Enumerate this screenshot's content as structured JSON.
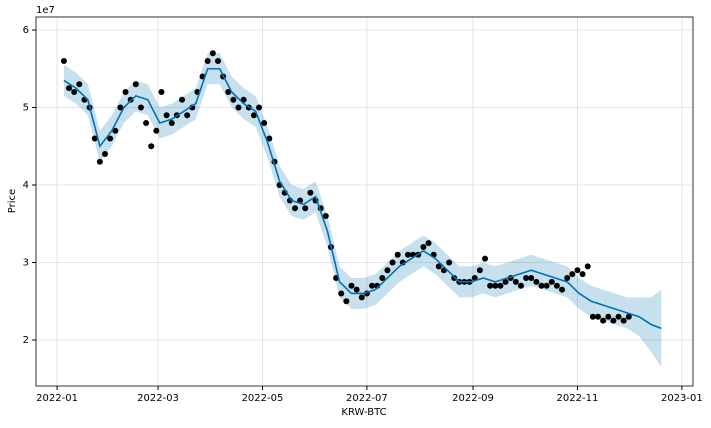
{
  "chart_data": {
    "type": "forecast",
    "y_label": "Price",
    "x_label": "KRW-BTC",
    "y_offset_label": "1e7",
    "grid": true,
    "xlim": [
      -12.3,
      371.5
    ],
    "xticks": [
      {
        "value": 0,
        "label": "2022-01"
      },
      {
        "value": 59,
        "label": "2022-03"
      },
      {
        "value": 120,
        "label": "2022-05"
      },
      {
        "value": 181,
        "label": "2022-07"
      },
      {
        "value": 243,
        "label": "2022-09"
      },
      {
        "value": 304,
        "label": "2022-11"
      },
      {
        "value": 365,
        "label": "2023-01"
      }
    ],
    "ylim": [
      1.406,
      6.168
    ],
    "yticks": [
      2,
      3,
      4,
      5,
      6
    ],
    "observed": {
      "color": "#000000",
      "x": [
        4,
        7,
        10,
        13,
        16,
        19,
        22,
        25,
        28,
        31,
        34,
        37,
        40,
        43,
        46,
        49,
        52,
        55,
        58,
        61,
        64,
        67,
        70,
        73,
        76,
        79,
        82,
        85,
        88,
        91,
        94,
        97,
        100,
        103,
        106,
        109,
        112,
        115,
        118,
        121,
        124,
        127,
        130,
        133,
        136,
        139,
        142,
        145,
        148,
        151,
        154,
        157,
        160,
        163,
        166,
        169,
        172,
        175,
        178,
        181,
        184,
        187,
        190,
        193,
        196,
        199,
        202,
        205,
        208,
        211,
        214,
        217,
        220,
        223,
        226,
        229,
        232,
        235,
        238,
        241,
        244,
        247,
        250,
        253,
        256,
        259,
        262,
        265,
        268,
        271,
        274,
        277,
        280,
        283,
        286,
        289,
        292,
        295,
        298,
        301,
        304,
        307,
        310,
        313,
        316,
        319,
        322,
        325,
        328,
        331,
        334
      ],
      "values": [
        5.6,
        5.25,
        5.2,
        5.3,
        5.1,
        5.0,
        4.6,
        4.3,
        4.4,
        4.6,
        4.7,
        5.0,
        5.2,
        5.1,
        5.3,
        5.0,
        4.8,
        4.5,
        4.7,
        5.2,
        4.9,
        4.8,
        4.9,
        5.1,
        4.9,
        5.0,
        5.2,
        5.4,
        5.6,
        5.7,
        5.6,
        5.4,
        5.2,
        5.1,
        5.0,
        5.1,
        5.0,
        4.9,
        5.0,
        4.8,
        4.6,
        4.3,
        4.0,
        3.9,
        3.8,
        3.7,
        3.8,
        3.7,
        3.9,
        3.8,
        3.7,
        3.6,
        3.2,
        2.8,
        2.6,
        2.5,
        2.7,
        2.65,
        2.55,
        2.6,
        2.7,
        2.7,
        2.8,
        2.9,
        3.0,
        3.1,
        3.0,
        3.1,
        3.1,
        3.1,
        3.2,
        3.25,
        3.1,
        2.95,
        2.9,
        3.0,
        2.8,
        2.75,
        2.75,
        2.75,
        2.8,
        2.9,
        3.05,
        2.7,
        2.7,
        2.7,
        2.75,
        2.8,
        2.75,
        2.7,
        2.8,
        2.8,
        2.75,
        2.7,
        2.7,
        2.75,
        2.7,
        2.65,
        2.8,
        2.85,
        2.9,
        2.85,
        2.95,
        2.3,
        2.3,
        2.25,
        2.3,
        2.25,
        2.3,
        2.25,
        2.3
      ]
    },
    "forecast": {
      "color": "#0072B2",
      "x": [
        4,
        11,
        18,
        25,
        32,
        39,
        46,
        53,
        60,
        67,
        74,
        81,
        88,
        95,
        102,
        109,
        116,
        123,
        130,
        137,
        144,
        151,
        158,
        165,
        172,
        179,
        186,
        193,
        200,
        207,
        214,
        221,
        228,
        235,
        242,
        249,
        256,
        263,
        270,
        277,
        284,
        291,
        298,
        305,
        312,
        319,
        326,
        333,
        340,
        347,
        353
      ],
      "values": [
        5.35,
        5.25,
        5.1,
        4.5,
        4.7,
        5.0,
        5.15,
        5.1,
        4.8,
        4.85,
        4.95,
        5.05,
        5.5,
        5.5,
        5.2,
        5.05,
        4.95,
        4.55,
        4.05,
        3.8,
        3.75,
        3.85,
        3.4,
        2.75,
        2.6,
        2.6,
        2.65,
        2.8,
        2.95,
        3.05,
        3.15,
        3.05,
        2.9,
        2.75,
        2.75,
        2.8,
        2.75,
        2.8,
        2.85,
        2.9,
        2.85,
        2.8,
        2.75,
        2.6,
        2.5,
        2.45,
        2.4,
        2.35,
        2.3,
        2.2,
        2.15
      ],
      "lower": [
        5.15,
        5.05,
        4.9,
        4.3,
        4.5,
        4.8,
        4.95,
        4.9,
        4.6,
        4.65,
        4.75,
        4.85,
        5.3,
        5.3,
        5.0,
        4.85,
        4.75,
        4.35,
        3.85,
        3.6,
        3.55,
        3.65,
        3.2,
        2.55,
        2.4,
        2.4,
        2.45,
        2.6,
        2.75,
        2.85,
        2.95,
        2.85,
        2.7,
        2.55,
        2.55,
        2.6,
        2.55,
        2.6,
        2.65,
        2.7,
        2.65,
        2.6,
        2.55,
        2.4,
        2.3,
        2.25,
        2.2,
        2.15,
        2.05,
        1.85,
        1.65
      ],
      "upper": [
        5.55,
        5.45,
        5.3,
        4.7,
        4.9,
        5.2,
        5.35,
        5.3,
        5.0,
        5.05,
        5.15,
        5.25,
        5.7,
        5.7,
        5.4,
        5.25,
        5.15,
        4.75,
        4.25,
        4.0,
        3.95,
        4.05,
        3.6,
        2.95,
        2.8,
        2.8,
        2.85,
        3.0,
        3.15,
        3.25,
        3.35,
        3.25,
        3.1,
        2.95,
        2.95,
        3.0,
        2.95,
        3.0,
        3.05,
        3.1,
        3.05,
        3.0,
        2.95,
        2.8,
        2.7,
        2.65,
        2.6,
        2.55,
        2.55,
        2.55,
        2.65
      ]
    }
  }
}
